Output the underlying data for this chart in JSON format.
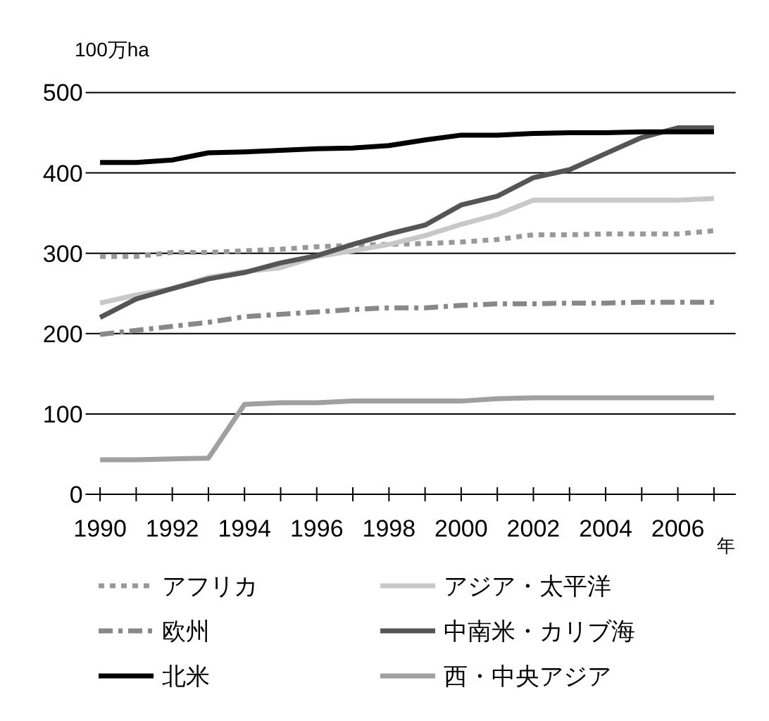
{
  "chart_data": {
    "type": "line",
    "ylabel": "100万ha",
    "xlabel": "年",
    "x": [
      1990,
      1991,
      1992,
      1993,
      1994,
      1995,
      1996,
      1997,
      1998,
      1999,
      2000,
      2001,
      2002,
      2003,
      2004,
      2005,
      2006,
      2007
    ],
    "series": [
      {
        "name": "アフリカ",
        "color": "#999999",
        "line_style": "dotted",
        "values": [
          296,
          296,
          301,
          301,
          303,
          305,
          308,
          310,
          311,
          312,
          314,
          317,
          323,
          323,
          324,
          324,
          324,
          328
        ]
      },
      {
        "name": "アジア・太平洋",
        "color": "#c8c8c8",
        "line_style": "solid",
        "values": [
          238,
          248,
          256,
          270,
          277,
          282,
          296,
          303,
          311,
          322,
          336,
          348,
          366,
          366,
          366,
          366,
          366,
          368
        ]
      },
      {
        "name": "欧州",
        "color": "#888888",
        "line_style": "dashdot",
        "values": [
          199,
          204,
          209,
          214,
          221,
          224,
          227,
          230,
          232,
          232,
          235,
          237,
          237,
          238,
          238,
          239,
          239,
          239
        ]
      },
      {
        "name": "中南米・カリブ海",
        "color": "#555555",
        "line_style": "solid",
        "values": [
          220,
          243,
          256,
          268,
          276,
          288,
          297,
          311,
          324,
          335,
          360,
          371,
          394,
          404,
          424,
          444,
          456,
          456
        ]
      },
      {
        "name": "北米",
        "color": "#000000",
        "line_style": "solid",
        "values": [
          413,
          413,
          416,
          425,
          426,
          428,
          430,
          431,
          434,
          441,
          447,
          447,
          449,
          450,
          450,
          451,
          451,
          451
        ]
      },
      {
        "name": "西・中央アジア",
        "color": "#a0a0a0",
        "line_style": "solid",
        "values": [
          43,
          43,
          44,
          45,
          112,
          114,
          114,
          116,
          116,
          116,
          116,
          119,
          120,
          120,
          120,
          120,
          120,
          120
        ]
      }
    ],
    "xlim": [
      1989.6,
      2007.6
    ],
    "xticks": [
      1990,
      {
        "value": 1991,
        "label": null
      },
      1992,
      {
        "value": 1993,
        "label": null
      },
      1994,
      {
        "value": 1995,
        "label": null
      },
      1996,
      {
        "value": 1997,
        "label": null
      },
      1998,
      {
        "value": 1999,
        "label": null
      },
      2000,
      {
        "value": 2001,
        "label": null
      },
      2002,
      {
        "value": 2003,
        "label": null
      },
      2004,
      {
        "value": 2005,
        "label": null
      },
      2006,
      {
        "value": 2007,
        "label": null
      }
    ],
    "ylim": [
      0,
      500
    ],
    "yticks": [
      0,
      100,
      200,
      300,
      400,
      500
    ],
    "grid": "y",
    "legend": "bottom"
  }
}
